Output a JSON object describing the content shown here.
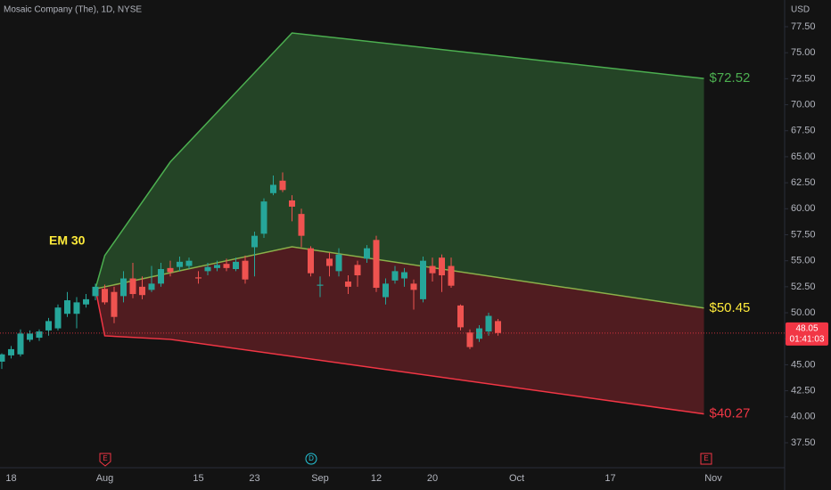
{
  "chart_data": {
    "type": "candlestick",
    "title": "Mosaic Company (The), 1D, NYSE",
    "currency": "USD",
    "annotation": "EM 30",
    "categories": [
      null,
      "18",
      null,
      null,
      null,
      null,
      null,
      null,
      null,
      null,
      null,
      "Aug",
      null,
      null,
      null,
      null,
      null,
      null,
      null,
      null,
      null,
      "15",
      null,
      null,
      null,
      null,
      null,
      "23",
      null,
      null,
      null,
      null,
      null,
      null,
      "Sep",
      null,
      null,
      null,
      null,
      null,
      "12",
      null,
      null,
      null,
      null,
      null,
      "20",
      null,
      null,
      null,
      null,
      null,
      null,
      null,
      null,
      "Oct",
      null,
      null,
      null,
      null,
      null,
      null,
      null,
      null,
      null,
      "17",
      null,
      null,
      null,
      null,
      null,
      null,
      null,
      null,
      null,
      null,
      "Nov"
    ],
    "open": [
      45.3,
      45.9,
      46.0,
      47.4,
      47.6,
      48.3,
      48.5,
      49.9,
      49.9,
      50.8,
      51.6,
      52.3,
      52.0,
      51.6,
      53.3,
      52.5,
      52.2,
      52.8,
      54.3,
      54.4,
      54.5,
      53.4,
      54.0,
      54.3,
      54.7,
      54.2,
      55.0,
      56.3,
      57.6,
      61.5,
      62.7,
      60.8,
      59.5,
      56.2,
      52.6,
      55.2,
      54.0,
      53.0,
      54.6,
      55.2,
      57.0,
      51.5,
      53.1,
      53.3,
      52.8,
      51.3,
      54.5,
      55.3,
      54.5,
      50.7,
      48.1,
      47.5,
      48.2,
      49.2,
      null,
      null,
      null,
      null,
      null,
      null,
      null,
      null,
      null,
      null,
      null,
      null,
      null,
      null,
      null,
      null,
      null,
      null,
      null,
      null,
      null,
      null,
      null
    ],
    "high": [
      46.1,
      46.8,
      48.4,
      48.3,
      48.4,
      49.5,
      50.8,
      52.0,
      51.5,
      51.8,
      52.8,
      52.7,
      52.5,
      54.0,
      54.8,
      53.5,
      54.5,
      54.8,
      55.0,
      55.4,
      55.3,
      54.0,
      54.8,
      55.0,
      55.2,
      55.3,
      55.5,
      57.8,
      61.0,
      63.2,
      63.5,
      61.3,
      60.0,
      56.4,
      53.5,
      55.8,
      56.2,
      53.6,
      55.0,
      56.5,
      57.4,
      53.3,
      54.5,
      54.3,
      53.2,
      55.4,
      55.3,
      55.6,
      55.3,
      50.8,
      48.4,
      48.8,
      50.0,
      49.4,
      null,
      null,
      null,
      null,
      null,
      null,
      null,
      null,
      null,
      null,
      null,
      null,
      null,
      null,
      null,
      null,
      null,
      null,
      null,
      null,
      null,
      null,
      null
    ],
    "low": [
      44.6,
      45.6,
      45.8,
      47.2,
      47.3,
      47.8,
      48.3,
      49.6,
      48.5,
      50.5,
      51.2,
      50.8,
      49.0,
      51.0,
      51.4,
      51.3,
      52.0,
      52.5,
      53.5,
      54.0,
      54.2,
      52.8,
      53.6,
      54.0,
      54.0,
      54.0,
      52.8,
      53.5,
      57.2,
      61.3,
      61.6,
      58.8,
      56.3,
      53.5,
      51.5,
      53.5,
      53.5,
      51.8,
      52.5,
      54.8,
      52.0,
      50.8,
      52.8,
      52.5,
      50.3,
      51.0,
      53.0,
      52.0,
      52.4,
      48.3,
      46.5,
      47.2,
      47.8,
      47.8,
      null,
      null,
      null,
      null,
      null,
      null,
      null,
      null,
      null,
      null,
      null,
      null,
      null,
      null,
      null,
      null,
      null,
      null,
      null,
      null,
      null,
      null,
      null
    ],
    "close": [
      46.0,
      46.5,
      48.0,
      48.0,
      48.2,
      49.2,
      50.5,
      51.2,
      51.0,
      51.3,
      52.5,
      51.0,
      49.6,
      53.3,
      51.8,
      51.7,
      52.8,
      54.2,
      53.9,
      54.9,
      55.0,
      53.3,
      54.4,
      54.6,
      54.3,
      54.9,
      53.2,
      57.4,
      60.7,
      62.3,
      61.8,
      60.2,
      57.4,
      53.8,
      52.7,
      54.5,
      55.6,
      52.5,
      53.6,
      56.2,
      52.4,
      52.8,
      54.0,
      53.9,
      52.2,
      55.0,
      53.8,
      53.6,
      52.6,
      48.6,
      46.7,
      48.5,
      49.7,
      48.05,
      null,
      null,
      null,
      null,
      null,
      null,
      null,
      null,
      null,
      null,
      null,
      null,
      null,
      null,
      null,
      null,
      null,
      null,
      null,
      null,
      null,
      null,
      null
    ],
    "up_color": "#26a69a",
    "down_color": "#ef5350",
    "last_price": {
      "value": 48.05,
      "label": "48.05",
      "countdown": "01:41:03",
      "color": "#f23645"
    },
    "lines": [
      {
        "x": [
          10,
          11,
          18,
          31,
          75
        ],
        "values": [
          52.3,
          55.5,
          64.5,
          76.9,
          72.52
        ],
        "color": "#4caf50",
        "value_label": "$72.52",
        "label_color": "#4caf50"
      },
      {
        "x": [
          10,
          31,
          75
        ],
        "values": [
          52.3,
          56.34,
          50.45
        ],
        "color": "#8bb04a",
        "value_label": "$50.45",
        "label_color": "#ffeb3b"
      },
      {
        "x": [
          10,
          11,
          18,
          75
        ],
        "values": [
          52.3,
          47.78,
          47.44,
          40.27
        ],
        "color": "#f23645",
        "value_label": "$40.27",
        "label_color": "#f23645"
      }
    ],
    "events": [
      "E",
      "D",
      "E"
    ],
    "ylim": [
      35.1,
      80.07
    ],
    "yticks": [
      {
        "value": 77.5,
        "label": "77.50"
      },
      {
        "value": 75,
        "label": "75.00"
      },
      {
        "value": 72.5,
        "label": "72.50"
      },
      {
        "value": 70,
        "label": "70.00"
      },
      {
        "value": 67.5,
        "label": "67.50"
      },
      {
        "value": 65,
        "label": "65.00"
      },
      {
        "value": 62.5,
        "label": "62.50"
      },
      {
        "value": 60,
        "label": "60.00"
      },
      {
        "value": 57.5,
        "label": "57.50"
      },
      {
        "value": 55,
        "label": "55.00"
      },
      {
        "value": 52.5,
        "label": "52.50"
      },
      {
        "value": 50,
        "label": "50.00"
      },
      {
        "value": 47.5,
        "label": "47.50"
      },
      {
        "value": 45,
        "label": "45.00"
      },
      {
        "value": 42.5,
        "label": "42.50"
      },
      {
        "value": 40,
        "label": "40.00"
      },
      {
        "value": 37.5,
        "label": "37.50"
      }
    ]
  }
}
